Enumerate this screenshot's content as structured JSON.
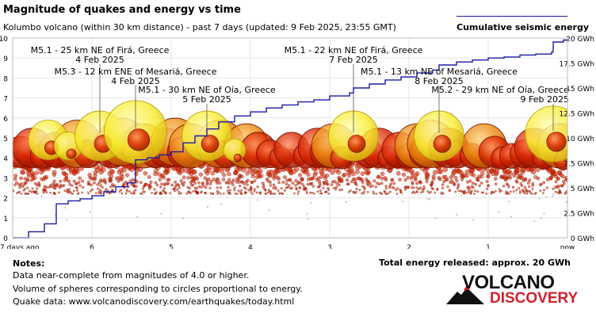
{
  "header": {
    "title": "Magnitude of quakes and energy vs time",
    "subtitle": "Kolumbo volcano (within 30 km distance) - past 7 days (updated: 9 Feb 2025, 23:55 GMT)",
    "legend_label": "Cumulative seismic energy"
  },
  "chart_data": {
    "type": "scatter",
    "title": "Magnitude of quakes and energy vs time",
    "x_axis": {
      "unit": "days ago",
      "range": [
        7,
        0
      ],
      "ticks": [
        {
          "value": 7,
          "label": "7 days ago"
        },
        {
          "value": 6,
          "label": "6"
        },
        {
          "value": 5,
          "label": "5"
        },
        {
          "value": 4,
          "label": "4"
        },
        {
          "value": 3,
          "label": "3"
        },
        {
          "value": 2,
          "label": "2"
        },
        {
          "value": 1,
          "label": "1"
        },
        {
          "value": 0,
          "label": "now"
        }
      ]
    },
    "y_left": {
      "label": "",
      "range": [
        0,
        10
      ],
      "ticks": [
        "0",
        "1",
        "2",
        "3",
        "4",
        "5",
        "6",
        "7",
        "8",
        "9",
        "10"
      ]
    },
    "y_right": {
      "label": "",
      "range": [
        0,
        20
      ],
      "ticks": [
        "0 GWh",
        "2.5 GWh",
        "5 GWh",
        "7.5 GWh",
        "10 GWh",
        "12.5 GWh",
        "15 GWh",
        "17.5 GWh",
        "20 GWh"
      ]
    },
    "grid": true,
    "annotations": [
      {
        "line1": "M5.1 - 25 km NE of Firá, Greece",
        "line2": "4 Feb 2025",
        "x": 5.9,
        "mag": 5.1
      },
      {
        "line1": "M5.3 - 12 km ENE of Mesariá, Greece",
        "line2": "4 Feb 2025",
        "x": 5.45,
        "mag": 5.3
      },
      {
        "line1": "M5.1 - 30 km NE of Oía, Greece",
        "line2": "5 Feb 2025",
        "x": 4.55,
        "mag": 5.1
      },
      {
        "line1": "M5.1 - 22 km NE of Firá, Greece",
        "line2": "7 Feb 2025",
        "x": 2.7,
        "mag": 5.1
      },
      {
        "line1": "M5.1 - 13 km NE of Mesariá, Greece",
        "line2": "8 Feb 2025",
        "x": 1.62,
        "mag": 5.1
      },
      {
        "line1": "M5.2 - 29 km NE of Oía, Greece",
        "line2": "9 Feb 2025",
        "x": 0.18,
        "mag": 5.2
      }
    ],
    "series": [
      {
        "name": "Cumulative seismic energy",
        "type": "line",
        "axis": "right",
        "unit": "GWh",
        "x": [
          7.0,
          6.8,
          6.6,
          6.45,
          6.3,
          6.15,
          6.0,
          5.85,
          5.7,
          5.55,
          5.45,
          5.3,
          5.15,
          5.0,
          4.85,
          4.7,
          4.55,
          4.4,
          4.2,
          4.0,
          3.8,
          3.6,
          3.4,
          3.2,
          3.0,
          2.75,
          2.7,
          2.5,
          2.3,
          2.1,
          1.9,
          1.7,
          1.62,
          1.4,
          1.2,
          1.0,
          0.8,
          0.6,
          0.4,
          0.2,
          0.18,
          0.05,
          0.0
        ],
        "values": [
          0.0,
          0.6,
          1.4,
          3.4,
          3.7,
          3.9,
          4.2,
          4.6,
          5.1,
          5.5,
          7.8,
          8.0,
          8.3,
          8.6,
          9.5,
          10.2,
          10.9,
          11.6,
          12.2,
          12.6,
          13.0,
          13.3,
          13.6,
          13.8,
          14.2,
          14.5,
          15.0,
          15.4,
          15.8,
          16.1,
          16.5,
          16.8,
          17.3,
          17.6,
          17.8,
          18.0,
          18.1,
          18.3,
          18.4,
          18.6,
          19.6,
          19.8,
          19.8
        ]
      },
      {
        "name": "Quakes M5+",
        "type": "scatter",
        "axis": "left",
        "x": [
          6.55,
          6.3,
          5.9,
          5.45,
          4.55,
          4.2,
          2.7,
          1.62,
          0.18
        ],
        "values": [
          4.9,
          4.6,
          5.1,
          5.3,
          5.1,
          4.4,
          5.1,
          5.1,
          5.2
        ]
      },
      {
        "name": "Quakes M4-M5",
        "type": "scatter",
        "axis": "left",
        "x": [
          6.9,
          6.75,
          6.62,
          6.45,
          6.18,
          6.05,
          5.75,
          5.62,
          5.35,
          5.2,
          5.05,
          4.95,
          4.85,
          4.75,
          4.38,
          4.3,
          4.05,
          3.9,
          3.75,
          3.62,
          3.48,
          3.3,
          3.15,
          3.05,
          2.95,
          2.85,
          2.5,
          2.38,
          2.25,
          2.12,
          2.0,
          1.9,
          1.8,
          1.72,
          1.5,
          1.38,
          1.2,
          1.05,
          0.92,
          0.82,
          0.7,
          0.55,
          0.42,
          0.3,
          0.1,
          0.05
        ],
        "values": [
          4.3,
          4.5,
          4.1,
          4.4,
          4.7,
          4.2,
          4.5,
          4.8,
          4.6,
          4.2,
          4.5,
          4.8,
          4.3,
          4.6,
          4.7,
          4.2,
          4.6,
          4.4,
          4.2,
          4.0,
          4.4,
          4.1,
          4.5,
          4.3,
          4.6,
          4.0,
          4.2,
          4.5,
          4.0,
          4.4,
          4.1,
          4.6,
          4.3,
          4.7,
          4.5,
          4.2,
          4.1,
          4.6,
          4.3,
          4.0,
          4.1,
          4.2,
          4.5,
          4.0,
          4.6,
          3.9
        ]
      }
    ]
  },
  "notes": {
    "title": "Notes:",
    "lines": [
      "Data near-complete from magnitudes of 4.0 or higher.",
      "Volume of spheres corresponding to circles proportional to energy.",
      "Quake data: www.volcanodiscovery.com/earthquakes/today.html"
    ]
  },
  "total_energy": "Total energy released: approx. 20 GWh",
  "logo": {
    "line1": "VOLCANO",
    "line2": "DISCOVERY"
  },
  "colors": {
    "energy_line": "#1a1aa6",
    "quake_fill": "#d62400",
    "big_quake_fill": "#f6e626",
    "grid": "#e6e6e6"
  }
}
